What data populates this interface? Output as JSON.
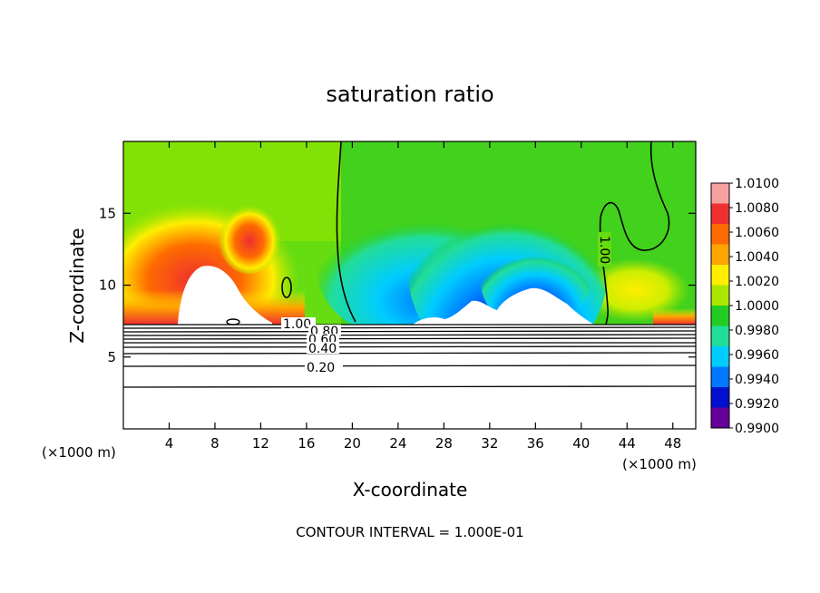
{
  "chart_data": {
    "type": "heatmap",
    "title": "saturation ratio",
    "xlabel": "X-coordinate",
    "ylabel": "Z-coordinate",
    "x_unit": "(×1000 m)",
    "footer": "CONTOUR INTERVAL = 1.000E-01",
    "xlim": [
      0,
      50
    ],
    "ylim": [
      0,
      20
    ],
    "x_ticks": [
      4,
      8,
      12,
      16,
      20,
      24,
      28,
      32,
      36,
      40,
      44,
      48
    ],
    "y_ticks": [
      5,
      10,
      15
    ],
    "colorbar": {
      "levels": [
        1.01,
        1.008,
        1.006,
        1.004,
        1.002,
        1.0,
        0.998,
        0.996,
        0.994,
        0.992,
        0.99
      ],
      "labels": [
        "1.0100",
        "1.0080",
        "1.0060",
        "1.0040",
        "1.0020",
        "1.0000",
        "0.9980",
        "0.9960",
        "0.9940",
        "0.9920",
        "0.9900"
      ],
      "colors": [
        "#f7a0a0",
        "#ee3030",
        "#ff6a00",
        "#ffa500",
        "#ffee00",
        "#aae600",
        "#22cc22",
        "#22dd99",
        "#00ccff",
        "#0077ff",
        "#0010cc",
        "#660099"
      ]
    },
    "contour_labels": [
      "1.00",
      "0.80",
      "0.60",
      "0.40",
      "0.20",
      "1.00"
    ],
    "grid": false
  }
}
